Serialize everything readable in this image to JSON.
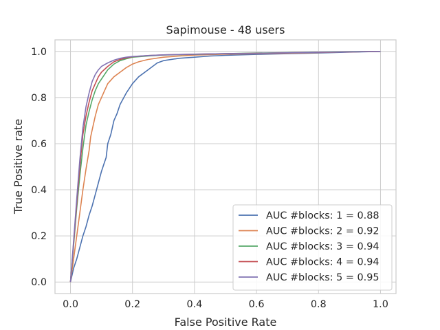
{
  "chart_data": {
    "type": "line",
    "title": "Sapimouse - 48 users",
    "xlabel": "False Positive Rate",
    "ylabel": "True Positive rate",
    "xlim": [
      -0.05,
      1.05
    ],
    "ylim": [
      -0.05,
      1.05
    ],
    "xticks": [
      "0.0",
      "0.2",
      "0.4",
      "0.6",
      "0.8",
      "1.0"
    ],
    "yticks": [
      "0.0",
      "0.2",
      "0.4",
      "0.6",
      "0.8",
      "1.0"
    ],
    "grid": true,
    "legend_position": "lower-right",
    "series": [
      {
        "name": "AUC #blocks: 1 = 0.88",
        "color": "#4c72b0",
        "x": [
          0.0,
          0.005,
          0.01,
          0.02,
          0.03,
          0.04,
          0.05,
          0.06,
          0.07,
          0.08,
          0.09,
          0.1,
          0.11,
          0.115,
          0.12,
          0.13,
          0.14,
          0.15,
          0.16,
          0.18,
          0.2,
          0.22,
          0.25,
          0.28,
          0.3,
          0.35,
          0.4,
          0.45,
          0.5,
          0.6,
          0.7,
          0.8,
          0.9,
          1.0
        ],
        "y": [
          0.0,
          0.03,
          0.06,
          0.1,
          0.15,
          0.2,
          0.24,
          0.29,
          0.33,
          0.38,
          0.43,
          0.48,
          0.52,
          0.54,
          0.6,
          0.64,
          0.7,
          0.73,
          0.77,
          0.82,
          0.86,
          0.89,
          0.92,
          0.95,
          0.96,
          0.97,
          0.975,
          0.98,
          0.983,
          0.987,
          0.99,
          0.993,
          0.997,
          1.0
        ]
      },
      {
        "name": "AUC #blocks: 2 = 0.92",
        "color": "#dd8452",
        "x": [
          0.0,
          0.01,
          0.02,
          0.03,
          0.04,
          0.05,
          0.06,
          0.065,
          0.07,
          0.08,
          0.09,
          0.1,
          0.11,
          0.12,
          0.14,
          0.16,
          0.18,
          0.2,
          0.22,
          0.25,
          0.3,
          0.35,
          0.4,
          0.5,
          0.6,
          0.7,
          0.8,
          0.9,
          1.0
        ],
        "y": [
          0.0,
          0.1,
          0.2,
          0.3,
          0.4,
          0.49,
          0.57,
          0.63,
          0.66,
          0.72,
          0.77,
          0.8,
          0.83,
          0.86,
          0.89,
          0.91,
          0.93,
          0.945,
          0.955,
          0.965,
          0.975,
          0.98,
          0.984,
          0.988,
          0.99,
          0.992,
          0.995,
          0.998,
          1.0
        ]
      },
      {
        "name": "AUC #blocks: 3 = 0.94",
        "color": "#55a868",
        "x": [
          0.0,
          0.01,
          0.02,
          0.03,
          0.04,
          0.045,
          0.05,
          0.06,
          0.07,
          0.08,
          0.09,
          0.1,
          0.12,
          0.14,
          0.16,
          0.18,
          0.2,
          0.25,
          0.3,
          0.4,
          0.5,
          0.6,
          0.7,
          0.8,
          0.9,
          1.0
        ],
        "y": [
          0.0,
          0.16,
          0.32,
          0.46,
          0.58,
          0.63,
          0.68,
          0.74,
          0.79,
          0.83,
          0.86,
          0.88,
          0.92,
          0.945,
          0.96,
          0.968,
          0.975,
          0.98,
          0.984,
          0.987,
          0.99,
          0.993,
          0.995,
          0.997,
          0.999,
          1.0
        ]
      },
      {
        "name": "AUC #blocks: 4 = 0.94",
        "color": "#c44e52",
        "x": [
          0.0,
          0.01,
          0.02,
          0.03,
          0.04,
          0.05,
          0.06,
          0.07,
          0.08,
          0.09,
          0.1,
          0.12,
          0.14,
          0.16,
          0.18,
          0.2,
          0.25,
          0.3,
          0.4,
          0.5,
          0.6,
          0.7,
          0.8,
          0.9,
          1.0
        ],
        "y": [
          0.0,
          0.17,
          0.34,
          0.5,
          0.64,
          0.72,
          0.78,
          0.83,
          0.86,
          0.89,
          0.91,
          0.935,
          0.955,
          0.965,
          0.972,
          0.977,
          0.982,
          0.985,
          0.988,
          0.99,
          0.992,
          0.994,
          0.996,
          0.998,
          1.0
        ]
      },
      {
        "name": "AUC #blocks: 5 = 0.95",
        "color": "#8172b3",
        "x": [
          0.0,
          0.01,
          0.02,
          0.03,
          0.04,
          0.05,
          0.06,
          0.07,
          0.08,
          0.09,
          0.1,
          0.12,
          0.14,
          0.16,
          0.18,
          0.2,
          0.25,
          0.3,
          0.4,
          0.5,
          0.6,
          0.7,
          0.8,
          0.9,
          1.0
        ],
        "y": [
          0.0,
          0.18,
          0.36,
          0.53,
          0.67,
          0.76,
          0.82,
          0.87,
          0.9,
          0.92,
          0.935,
          0.95,
          0.962,
          0.97,
          0.975,
          0.978,
          0.982,
          0.985,
          0.988,
          0.99,
          0.992,
          0.994,
          0.996,
          0.998,
          1.0
        ]
      }
    ]
  }
}
